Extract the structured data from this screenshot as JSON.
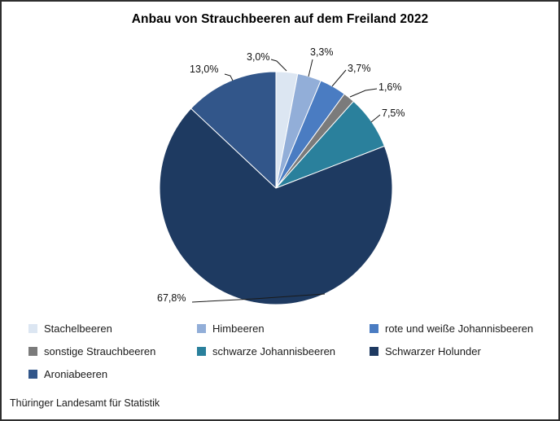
{
  "title": "Anbau von Strauchbeeren auf dem Freiland 2022",
  "footer": {
    "source_label": "Thüringer Landesamt für Statistik"
  },
  "chart_data": {
    "type": "pie",
    "title": "Anbau von Strauchbeeren auf dem Freiland 2022",
    "start_angle_deg": 0,
    "direction": "clockwise",
    "value_unit": "%",
    "legend_position": "bottom",
    "slices": [
      {
        "name": "Stachelbeeren",
        "value": 3.0,
        "label": "3,0%",
        "color": "#dce6f2"
      },
      {
        "name": "Himbeeren",
        "value": 3.3,
        "label": "3,3%",
        "color": "#92aed8"
      },
      {
        "name": "rote und weiße Johannisbeeren",
        "value": 3.7,
        "label": "3,7%",
        "color": "#4a7cc2"
      },
      {
        "name": "sonstige Strauchbeeren",
        "value": 1.6,
        "label": "1,6%",
        "color": "#7b7b7b"
      },
      {
        "name": "schwarze Johannisbeeren",
        "value": 7.5,
        "label": "7,5%",
        "color": "#2a809c"
      },
      {
        "name": "Schwarzer Holunder",
        "value": 67.8,
        "label": "67,8%",
        "color": "#1e3a61"
      },
      {
        "name": "Aroniabeeren",
        "value": 13.0,
        "label": "13,0%",
        "color": "#32568a"
      }
    ]
  }
}
